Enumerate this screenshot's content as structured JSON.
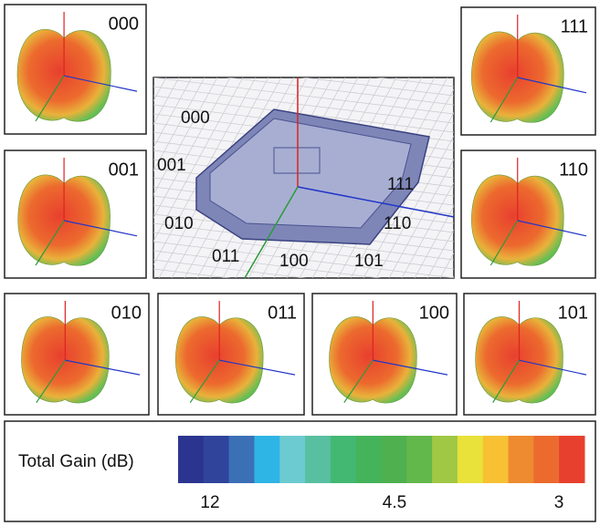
{
  "panels": [
    {
      "label": "000"
    },
    {
      "label": "111"
    },
    {
      "label": "001"
    },
    {
      "label": "110"
    },
    {
      "label": "010"
    },
    {
      "label": "011"
    },
    {
      "label": "100"
    },
    {
      "label": "101"
    }
  ],
  "diagram": {
    "labels": [
      "000",
      "001",
      "010",
      "011",
      "100",
      "101",
      "110",
      "111"
    ]
  },
  "legend": {
    "title": "Total Gain (dB)",
    "colors": [
      "#2b3590",
      "#30449c",
      "#3b6fb6",
      "#2fb4e6",
      "#6ccbd0",
      "#58c0a0",
      "#43b873",
      "#45b35a",
      "#4fb04f",
      "#63b84c",
      "#a0c844",
      "#e8e23a",
      "#f7c133",
      "#ee8a2f",
      "#ec6a2e",
      "#e8402e"
    ],
    "tick_labels": [
      "12",
      "4.5",
      "3"
    ]
  }
}
